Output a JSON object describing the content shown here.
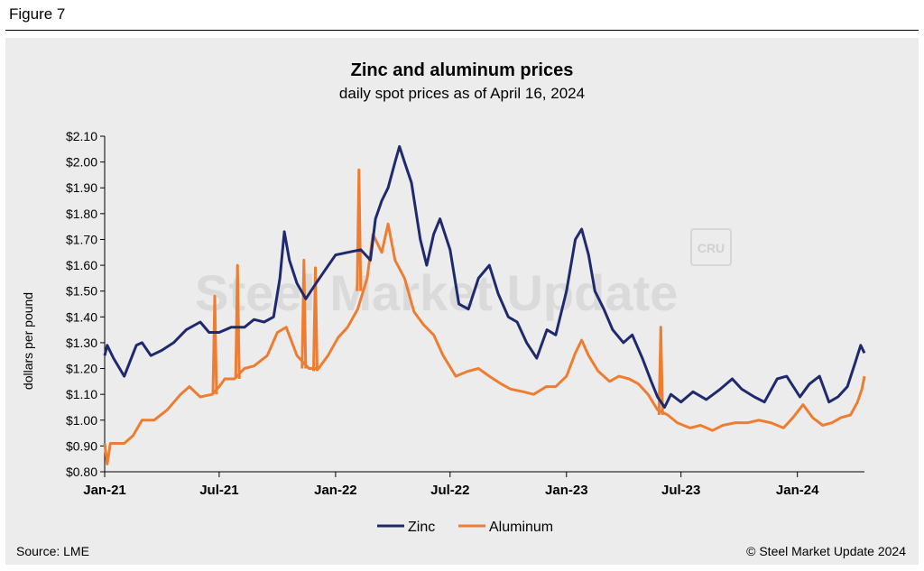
{
  "figure_label": "Figure 7",
  "source": "Source: LME",
  "copyright": "© Steel Market Update 2024",
  "watermark": {
    "brand": "Steel Market Update",
    "logo": "CRU"
  },
  "colors": {
    "zinc": "#1f2a6e",
    "aluminum": "#ee7d31",
    "panel": "#ececec"
  },
  "chart_data": {
    "type": "line",
    "title": "Zinc and aluminum prices",
    "subtitle": "daily spot prices as of April 16, 2024",
    "ylabel": "dollars per pound",
    "xlabel": "",
    "ylim": [
      0.8,
      2.1
    ],
    "yticks": [
      "$0.80",
      "$0.90",
      "$1.00",
      "$1.10",
      "$1.20",
      "$1.30",
      "$1.40",
      "$1.50",
      "$1.60",
      "$1.70",
      "$1.80",
      "$1.90",
      "$2.00",
      "$2.10"
    ],
    "xticks": [
      "Jan-21",
      "Jul-21",
      "Jan-22",
      "Jul-22",
      "Jan-23",
      "Jul-23",
      "Jan-24"
    ],
    "xrange": [
      "2021-01-01",
      "2024-04-16"
    ],
    "legend_position": "bottom-center",
    "series": [
      {
        "name": "Zinc",
        "points": [
          [
            "2021-01-01",
            1.25
          ],
          [
            "2021-01-05",
            1.29
          ],
          [
            "2021-01-15",
            1.24
          ],
          [
            "2021-02-01",
            1.17
          ],
          [
            "2021-02-20",
            1.29
          ],
          [
            "2021-03-01",
            1.3
          ],
          [
            "2021-03-15",
            1.25
          ],
          [
            "2021-04-01",
            1.27
          ],
          [
            "2021-04-20",
            1.3
          ],
          [
            "2021-05-10",
            1.35
          ],
          [
            "2021-06-01",
            1.38
          ],
          [
            "2021-06-15",
            1.34
          ],
          [
            "2021-07-01",
            1.34
          ],
          [
            "2021-07-20",
            1.36
          ],
          [
            "2021-08-10",
            1.36
          ],
          [
            "2021-08-25",
            1.39
          ],
          [
            "2021-09-10",
            1.38
          ],
          [
            "2021-09-25",
            1.4
          ],
          [
            "2021-10-05",
            1.55
          ],
          [
            "2021-10-12",
            1.73
          ],
          [
            "2021-10-20",
            1.62
          ],
          [
            "2021-11-01",
            1.53
          ],
          [
            "2021-11-15",
            1.47
          ],
          [
            "2021-12-01",
            1.53
          ],
          [
            "2021-12-15",
            1.58
          ],
          [
            "2022-01-01",
            1.64
          ],
          [
            "2022-01-20",
            1.65
          ],
          [
            "2022-02-10",
            1.66
          ],
          [
            "2022-02-25",
            1.62
          ],
          [
            "2022-03-05",
            1.78
          ],
          [
            "2022-03-15",
            1.85
          ],
          [
            "2022-03-25",
            1.9
          ],
          [
            "2022-04-05",
            2.0
          ],
          [
            "2022-04-12",
            2.06
          ],
          [
            "2022-04-20",
            2.0
          ],
          [
            "2022-05-01",
            1.92
          ],
          [
            "2022-05-15",
            1.7
          ],
          [
            "2022-05-25",
            1.6
          ],
          [
            "2022-06-05",
            1.72
          ],
          [
            "2022-06-15",
            1.78
          ],
          [
            "2022-07-01",
            1.66
          ],
          [
            "2022-07-15",
            1.45
          ],
          [
            "2022-07-30",
            1.43
          ],
          [
            "2022-08-15",
            1.55
          ],
          [
            "2022-09-01",
            1.6
          ],
          [
            "2022-09-15",
            1.49
          ],
          [
            "2022-10-01",
            1.4
          ],
          [
            "2022-10-15",
            1.38
          ],
          [
            "2022-10-30",
            1.3
          ],
          [
            "2022-11-15",
            1.24
          ],
          [
            "2022-12-01",
            1.35
          ],
          [
            "2022-12-15",
            1.33
          ],
          [
            "2023-01-01",
            1.5
          ],
          [
            "2023-01-15",
            1.7
          ],
          [
            "2023-01-25",
            1.74
          ],
          [
            "2023-02-05",
            1.64
          ],
          [
            "2023-02-15",
            1.5
          ],
          [
            "2023-03-01",
            1.43
          ],
          [
            "2023-03-15",
            1.35
          ],
          [
            "2023-04-01",
            1.3
          ],
          [
            "2023-04-15",
            1.33
          ],
          [
            "2023-05-01",
            1.24
          ],
          [
            "2023-05-15",
            1.15
          ],
          [
            "2023-05-25",
            1.09
          ],
          [
            "2023-06-05",
            1.05
          ],
          [
            "2023-06-15",
            1.1
          ],
          [
            "2023-07-01",
            1.07
          ],
          [
            "2023-07-20",
            1.11
          ],
          [
            "2023-08-10",
            1.08
          ],
          [
            "2023-09-01",
            1.12
          ],
          [
            "2023-09-20",
            1.16
          ],
          [
            "2023-10-05",
            1.12
          ],
          [
            "2023-10-25",
            1.09
          ],
          [
            "2023-11-10",
            1.07
          ],
          [
            "2023-11-30",
            1.16
          ],
          [
            "2023-12-15",
            1.17
          ],
          [
            "2024-01-05",
            1.09
          ],
          [
            "2024-01-20",
            1.14
          ],
          [
            "2024-02-05",
            1.17
          ],
          [
            "2024-02-20",
            1.07
          ],
          [
            "2024-03-05",
            1.09
          ],
          [
            "2024-03-20",
            1.13
          ],
          [
            "2024-04-01",
            1.22
          ],
          [
            "2024-04-10",
            1.29
          ],
          [
            "2024-04-16",
            1.26
          ]
        ]
      },
      {
        "name": "Aluminum",
        "points": [
          [
            "2021-01-01",
            0.91
          ],
          [
            "2021-01-05",
            0.83
          ],
          [
            "2021-01-10",
            0.91
          ],
          [
            "2021-02-01",
            0.91
          ],
          [
            "2021-02-15",
            0.94
          ],
          [
            "2021-03-01",
            1.0
          ],
          [
            "2021-03-20",
            1.0
          ],
          [
            "2021-04-10",
            1.04
          ],
          [
            "2021-05-01",
            1.1
          ],
          [
            "2021-05-15",
            1.13
          ],
          [
            "2021-06-01",
            1.09
          ],
          [
            "2021-06-20",
            1.1
          ],
          [
            "2021-07-01",
            1.13
          ],
          [
            "2021-07-10",
            1.16
          ],
          [
            "2021-07-25",
            1.16
          ],
          [
            "2021-08-10",
            1.2
          ],
          [
            "2021-08-25",
            1.21
          ],
          [
            "2021-09-15",
            1.25
          ],
          [
            "2021-10-01",
            1.34
          ],
          [
            "2021-10-15",
            1.36
          ],
          [
            "2021-11-01",
            1.25
          ],
          [
            "2021-11-20",
            1.2
          ],
          [
            "2021-12-05",
            1.2
          ],
          [
            "2021-12-20",
            1.25
          ],
          [
            "2022-01-05",
            1.32
          ],
          [
            "2022-01-20",
            1.36
          ],
          [
            "2022-02-05",
            1.43
          ],
          [
            "2022-02-20",
            1.55
          ],
          [
            "2022-03-01",
            1.72
          ],
          [
            "2022-03-15",
            1.65
          ],
          [
            "2022-03-25",
            1.76
          ],
          [
            "2022-04-05",
            1.62
          ],
          [
            "2022-04-20",
            1.55
          ],
          [
            "2022-05-05",
            1.42
          ],
          [
            "2022-05-20",
            1.37
          ],
          [
            "2022-06-05",
            1.33
          ],
          [
            "2022-06-20",
            1.25
          ],
          [
            "2022-07-10",
            1.17
          ],
          [
            "2022-07-30",
            1.19
          ],
          [
            "2022-08-15",
            1.2
          ],
          [
            "2022-09-01",
            1.17
          ],
          [
            "2022-09-20",
            1.14
          ],
          [
            "2022-10-05",
            1.12
          ],
          [
            "2022-10-25",
            1.11
          ],
          [
            "2022-11-10",
            1.1
          ],
          [
            "2022-11-30",
            1.13
          ],
          [
            "2022-12-15",
            1.13
          ],
          [
            "2023-01-01",
            1.17
          ],
          [
            "2023-01-15",
            1.26
          ],
          [
            "2023-01-25",
            1.31
          ],
          [
            "2023-02-05",
            1.25
          ],
          [
            "2023-02-20",
            1.19
          ],
          [
            "2023-03-10",
            1.15
          ],
          [
            "2023-03-25",
            1.17
          ],
          [
            "2023-04-10",
            1.16
          ],
          [
            "2023-04-25",
            1.14
          ],
          [
            "2023-05-10",
            1.1
          ],
          [
            "2023-05-25",
            1.04
          ],
          [
            "2023-06-10",
            1.02
          ],
          [
            "2023-06-25",
            0.99
          ],
          [
            "2023-07-15",
            0.97
          ],
          [
            "2023-08-01",
            0.98
          ],
          [
            "2023-08-20",
            0.96
          ],
          [
            "2023-09-05",
            0.98
          ],
          [
            "2023-09-25",
            0.99
          ],
          [
            "2023-10-15",
            0.99
          ],
          [
            "2023-11-01",
            1.0
          ],
          [
            "2023-11-20",
            0.99
          ],
          [
            "2023-12-10",
            0.97
          ],
          [
            "2023-12-25",
            1.01
          ],
          [
            "2024-01-10",
            1.06
          ],
          [
            "2024-01-25",
            1.01
          ],
          [
            "2024-02-10",
            0.98
          ],
          [
            "2024-02-25",
            0.99
          ],
          [
            "2024-03-10",
            1.01
          ],
          [
            "2024-03-25",
            1.02
          ],
          [
            "2024-04-05",
            1.07
          ],
          [
            "2024-04-12",
            1.12
          ],
          [
            "2024-04-16",
            1.17
          ]
        ],
        "spikes": [
          [
            "2021-06-24",
            1.1,
            1.48
          ],
          [
            "2021-07-30",
            1.16,
            1.6
          ],
          [
            "2021-11-12",
            1.2,
            1.62
          ],
          [
            "2021-11-30",
            1.19,
            1.59
          ],
          [
            "2022-02-07",
            1.5,
            1.97
          ],
          [
            "2023-05-30",
            1.02,
            1.36
          ]
        ]
      }
    ]
  }
}
